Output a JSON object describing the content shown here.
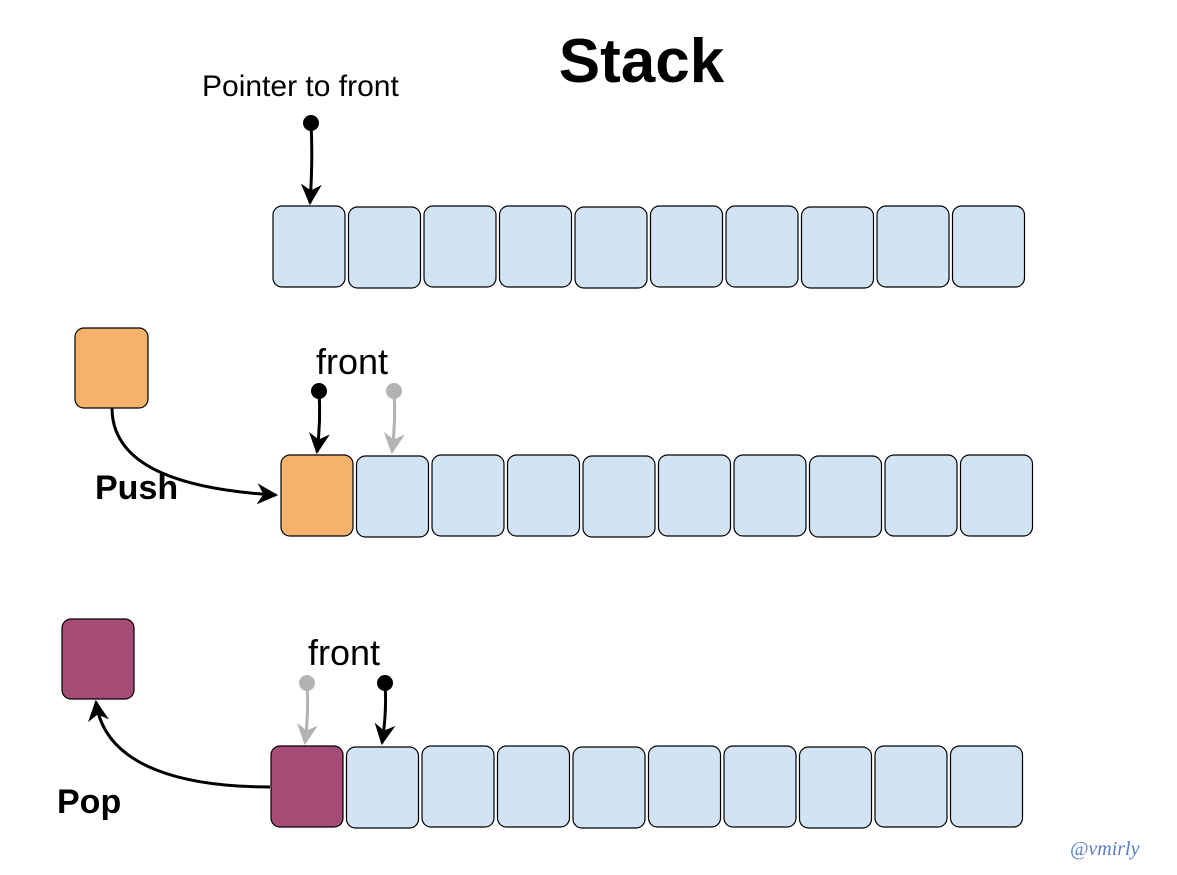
{
  "title": "Stack",
  "labels": {
    "pointer_to_front": "Pointer to front",
    "front_push": "front",
    "front_pop": "front",
    "push": "Push",
    "pop": "Pop"
  },
  "signature": "@vmirly",
  "colors": {
    "cell": "#d2e3f4",
    "push_element": "#f6b26b",
    "pop_element": "#a54c76",
    "active_pointer": "#000000",
    "previous_pointer": "#b3b3b3"
  },
  "rows": [
    {
      "name": "initial",
      "cells": 10
    },
    {
      "name": "push",
      "cells": 10,
      "first_cell": "push_element"
    },
    {
      "name": "pop",
      "cells": 10,
      "first_cell": "pop_element"
    }
  ],
  "icons": [
    "arrow-icon"
  ]
}
